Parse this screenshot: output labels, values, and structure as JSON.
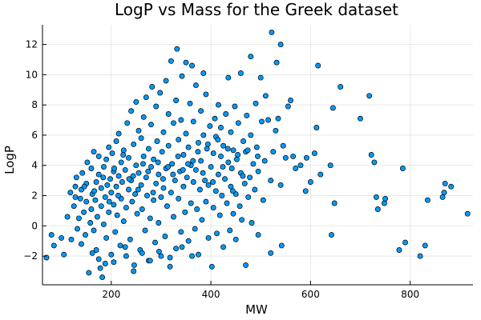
{
  "chart_data": {
    "type": "scatter",
    "title": "LogP vs Mass for the Greek dataset",
    "xlabel": "MW",
    "ylabel": "LogP",
    "xlim": [
      62,
      926
    ],
    "ylim": [
      -3.9,
      13.3
    ],
    "xticks": [
      200,
      400,
      600,
      800
    ],
    "yticks": [
      -2,
      0,
      2,
      4,
      6,
      8,
      10,
      12
    ],
    "grid": true,
    "legend": false,
    "marker_color": "#009af9",
    "points": [
      [
        70,
        -2.1
      ],
      [
        80,
        -0.6
      ],
      [
        85,
        -1.3
      ],
      [
        100,
        -0.8
      ],
      [
        105,
        -1.9
      ],
      [
        112,
        0.6
      ],
      [
        118,
        2.2
      ],
      [
        120,
        -0.9
      ],
      [
        125,
        1.3
      ],
      [
        128,
        2.6
      ],
      [
        130,
        3.2
      ],
      [
        132,
        -0.2
      ],
      [
        135,
        0.5
      ],
      [
        138,
        1.8
      ],
      [
        140,
        2.4
      ],
      [
        140,
        -1.2
      ],
      [
        142,
        3.5
      ],
      [
        145,
        0.9
      ],
      [
        148,
        -0.6
      ],
      [
        150,
        1.6
      ],
      [
        150,
        2.8
      ],
      [
        152,
        4.2
      ],
      [
        155,
        -3.1
      ],
      [
        158,
        0.2
      ],
      [
        160,
        1.1
      ],
      [
        160,
        3.8
      ],
      [
        162,
        2.1
      ],
      [
        165,
        -0.3
      ],
      [
        165,
        4.9
      ],
      [
        168,
        1.7
      ],
      [
        170,
        2.9
      ],
      [
        170,
        -1.6
      ],
      [
        172,
        0.6
      ],
      [
        175,
        3.4
      ],
      [
        175,
        4.6
      ],
      [
        178,
        -2.8
      ],
      [
        180,
        1.3
      ],
      [
        180,
        2.5
      ],
      [
        182,
        -3.4
      ],
      [
        185,
        0.1
      ],
      [
        185,
        3.9
      ],
      [
        188,
        1.9
      ],
      [
        190,
        4.4
      ],
      [
        190,
        -0.8
      ],
      [
        192,
        2.7
      ],
      [
        195,
        5.2
      ],
      [
        195,
        0.9
      ],
      [
        198,
        3.1
      ],
      [
        200,
        -1.9
      ],
      [
        200,
        2.2
      ],
      [
        202,
        4.8
      ],
      [
        205,
        1.4
      ],
      [
        205,
        3.6
      ],
      [
        208,
        -0.4
      ],
      [
        210,
        2.6
      ],
      [
        210,
        5.6
      ],
      [
        212,
        0.7
      ],
      [
        215,
        3.3
      ],
      [
        215,
        6.1
      ],
      [
        218,
        -1.3
      ],
      [
        220,
        1.8
      ],
      [
        220,
        4.2
      ],
      [
        222,
        2.9
      ],
      [
        225,
        0.3
      ],
      [
        225,
        5.0
      ],
      [
        228,
        3.7
      ],
      [
        230,
        -2.0
      ],
      [
        230,
        1.2
      ],
      [
        232,
        6.8
      ],
      [
        235,
        2.4
      ],
      [
        235,
        4.5
      ],
      [
        238,
        -0.9
      ],
      [
        240,
        3.0
      ],
      [
        240,
        7.6
      ],
      [
        242,
        1.6
      ],
      [
        245,
        5.4
      ],
      [
        245,
        -3.0
      ],
      [
        248,
        2.1
      ],
      [
        250,
        4.0
      ],
      [
        250,
        8.2
      ],
      [
        252,
        0.8
      ],
      [
        255,
        3.5
      ],
      [
        255,
        6.3
      ],
      [
        258,
        -1.6
      ],
      [
        260,
        2.7
      ],
      [
        260,
        5.8
      ],
      [
        262,
        1.1
      ],
      [
        265,
        4.6
      ],
      [
        265,
        7.2
      ],
      [
        268,
        -0.3
      ],
      [
        270,
        3.2
      ],
      [
        270,
        8.5
      ],
      [
        272,
        2.0
      ],
      [
        275,
        5.1
      ],
      [
        275,
        -2.3
      ],
      [
        278,
        0.5
      ],
      [
        280,
        3.9
      ],
      [
        280,
        6.7
      ],
      [
        282,
        9.2
      ],
      [
        285,
        1.7
      ],
      [
        285,
        4.4
      ],
      [
        288,
        -1.1
      ],
      [
        290,
        2.8
      ],
      [
        290,
        7.9
      ],
      [
        292,
        5.6
      ],
      [
        295,
        0.2
      ],
      [
        295,
        3.4
      ],
      [
        298,
        8.8
      ],
      [
        300,
        -2.0
      ],
      [
        300,
        1.9
      ],
      [
        302,
        4.9
      ],
      [
        305,
        6.2
      ],
      [
        305,
        2.5
      ],
      [
        308,
        -0.7
      ],
      [
        310,
        3.8
      ],
      [
        310,
        9.6
      ],
      [
        312,
        1.3
      ],
      [
        315,
        5.3
      ],
      [
        315,
        7.4
      ],
      [
        318,
        -2.7
      ],
      [
        320,
        2.2
      ],
      [
        320,
        10.9
      ],
      [
        322,
        4.1
      ],
      [
        325,
        0.6
      ],
      [
        325,
        6.8
      ],
      [
        328,
        3.0
      ],
      [
        330,
        -1.5
      ],
      [
        330,
        8.3
      ],
      [
        332,
        11.7
      ],
      [
        335,
        1.8
      ],
      [
        335,
        5.7
      ],
      [
        338,
        3.6
      ],
      [
        340,
        -0.4
      ],
      [
        340,
        7.0
      ],
      [
        342,
        9.9
      ],
      [
        345,
        2.6
      ],
      [
        345,
        4.7
      ],
      [
        348,
        0.9
      ],
      [
        350,
        6.1
      ],
      [
        350,
        10.8
      ],
      [
        352,
        3.2
      ],
      [
        355,
        -1.0
      ],
      [
        355,
        5.2
      ],
      [
        358,
        8.1
      ],
      [
        360,
        1.5
      ],
      [
        360,
        4.0
      ],
      [
        362,
        10.6
      ],
      [
        365,
        2.9
      ],
      [
        365,
        6.9
      ],
      [
        368,
        -0.2
      ],
      [
        370,
        3.7
      ],
      [
        370,
        9.3
      ],
      [
        372,
        1.1
      ],
      [
        375,
        5.5
      ],
      [
        375,
        -1.9
      ],
      [
        378,
        2.4
      ],
      [
        380,
        7.6
      ],
      [
        380,
        4.3
      ],
      [
        382,
        0.4
      ],
      [
        385,
        6.0
      ],
      [
        385,
        10.1
      ],
      [
        388,
        3.0
      ],
      [
        390,
        1.6
      ],
      [
        390,
        8.7
      ],
      [
        392,
        5.1
      ],
      [
        395,
        -0.8
      ],
      [
        395,
        2.7
      ],
      [
        398,
        6.6
      ],
      [
        400,
        3.9
      ],
      [
        402,
        -2.7
      ],
      [
        405,
        1.2
      ],
      [
        405,
        4.8
      ],
      [
        408,
        7.1
      ],
      [
        410,
        2.3
      ],
      [
        410,
        5.9
      ],
      [
        412,
        -0.5
      ],
      [
        415,
        3.4
      ],
      [
        415,
        8.0
      ],
      [
        418,
        0.7
      ],
      [
        420,
        4.6
      ],
      [
        420,
        6.5
      ],
      [
        422,
        2.0
      ],
      [
        425,
        -1.4
      ],
      [
        425,
        5.3
      ],
      [
        428,
        3.1
      ],
      [
        430,
        7.4
      ],
      [
        432,
        1.5
      ],
      [
        435,
        4.2
      ],
      [
        435,
        9.8
      ],
      [
        438,
        -0.3
      ],
      [
        440,
        2.6
      ],
      [
        440,
        6.2
      ],
      [
        442,
        3.8
      ],
      [
        445,
        0.8
      ],
      [
        445,
        5.0
      ],
      [
        448,
        7.9
      ],
      [
        450,
        2.1
      ],
      [
        450,
        -0.9
      ],
      [
        452,
        4.4
      ],
      [
        455,
        6.8
      ],
      [
        458,
        1.3
      ],
      [
        460,
        3.5
      ],
      [
        460,
        10.1
      ],
      [
        462,
        0.4
      ],
      [
        465,
        5.6
      ],
      [
        468,
        2.8
      ],
      [
        470,
        -2.6
      ],
      [
        470,
        4.9
      ],
      [
        472,
        7.3
      ],
      [
        475,
        1.9
      ],
      [
        478,
        3.2
      ],
      [
        480,
        11.2
      ],
      [
        480,
        6.0
      ],
      [
        482,
        0.2
      ],
      [
        485,
        4.1
      ],
      [
        488,
        2.4
      ],
      [
        490,
        8.1
      ],
      [
        492,
        5.2
      ],
      [
        495,
        -0.6
      ],
      [
        495,
        3.6
      ],
      [
        500,
        9.8
      ],
      [
        502,
        6.9
      ],
      [
        505,
        1.7
      ],
      [
        508,
        4.3
      ],
      [
        510,
        8.6
      ],
      [
        515,
        7.0
      ],
      [
        520,
        -1.8
      ],
      [
        520,
        3.0
      ],
      [
        522,
        12.8
      ],
      [
        525,
        4.9
      ],
      [
        530,
        6.3
      ],
      [
        532,
        10.8
      ],
      [
        535,
        7.1
      ],
      [
        540,
        2.7
      ],
      [
        540,
        12.0
      ],
      [
        542,
        -1.3
      ],
      [
        545,
        5.3
      ],
      [
        550,
        4.5
      ],
      [
        555,
        7.9
      ],
      [
        560,
        8.3
      ],
      [
        565,
        4.6
      ],
      [
        570,
        3.8
      ],
      [
        580,
        4.0
      ],
      [
        590,
        2.3
      ],
      [
        592,
        4.5
      ],
      [
        600,
        2.9
      ],
      [
        608,
        4.8
      ],
      [
        612,
        6.5
      ],
      [
        615,
        10.6
      ],
      [
        620,
        3.4
      ],
      [
        640,
        4.0
      ],
      [
        642,
        -0.6
      ],
      [
        645,
        7.8
      ],
      [
        648,
        1.5
      ],
      [
        660,
        9.2
      ],
      [
        700,
        7.1
      ],
      [
        718,
        8.6
      ],
      [
        722,
        4.7
      ],
      [
        728,
        4.2
      ],
      [
        732,
        1.9
      ],
      [
        735,
        1.1
      ],
      [
        748,
        1.5
      ],
      [
        750,
        1.8
      ],
      [
        778,
        -1.6
      ],
      [
        785,
        3.8
      ],
      [
        790,
        -1.1
      ],
      [
        820,
        -2.0
      ],
      [
        830,
        -1.3
      ],
      [
        835,
        1.7
      ],
      [
        865,
        1.9
      ],
      [
        868,
        2.2
      ],
      [
        870,
        2.8
      ],
      [
        882,
        2.6
      ],
      [
        915,
        0.8
      ],
      [
        162,
        -1.8
      ],
      [
        175,
        -2.2
      ],
      [
        188,
        -2.5
      ],
      [
        205,
        -2.4
      ],
      [
        228,
        -1.4
      ],
      [
        246,
        -2.6
      ],
      [
        262,
        -1.8
      ],
      [
        278,
        -2.3
      ],
      [
        296,
        -1.7
      ],
      [
        318,
        -2.1
      ],
      [
        342,
        -1.4
      ],
      [
        362,
        -2.0
      ],
      [
        128,
        1.9
      ],
      [
        146,
        2.6
      ],
      [
        166,
        2.3
      ],
      [
        184,
        3.2
      ],
      [
        196,
        1.6
      ],
      [
        214,
        2.0
      ],
      [
        236,
        3.1
      ],
      [
        254,
        2.4
      ],
      [
        274,
        3.6
      ],
      [
        294,
        4.2
      ],
      [
        314,
        3.9
      ],
      [
        334,
        4.6
      ],
      [
        354,
        4.1
      ],
      [
        374,
        4.9
      ],
      [
        394,
        5.4
      ],
      [
        414,
        5.7
      ],
      [
        434,
        5.1
      ],
      [
        454,
        4.7
      ],
      [
        474,
        5.0
      ],
      [
        494,
        4.6
      ],
      [
        206,
        3.8
      ],
      [
        224,
        4.7
      ],
      [
        244,
        3.3
      ],
      [
        264,
        4.1
      ],
      [
        284,
        2.2
      ],
      [
        304,
        3.1
      ],
      [
        324,
        3.4
      ],
      [
        344,
        3.7
      ],
      [
        364,
        4.3
      ],
      [
        384,
        3.5
      ],
      [
        404,
        2.9
      ],
      [
        424,
        3.9
      ],
      [
        444,
        2.3
      ],
      [
        464,
        3.3
      ]
    ]
  }
}
